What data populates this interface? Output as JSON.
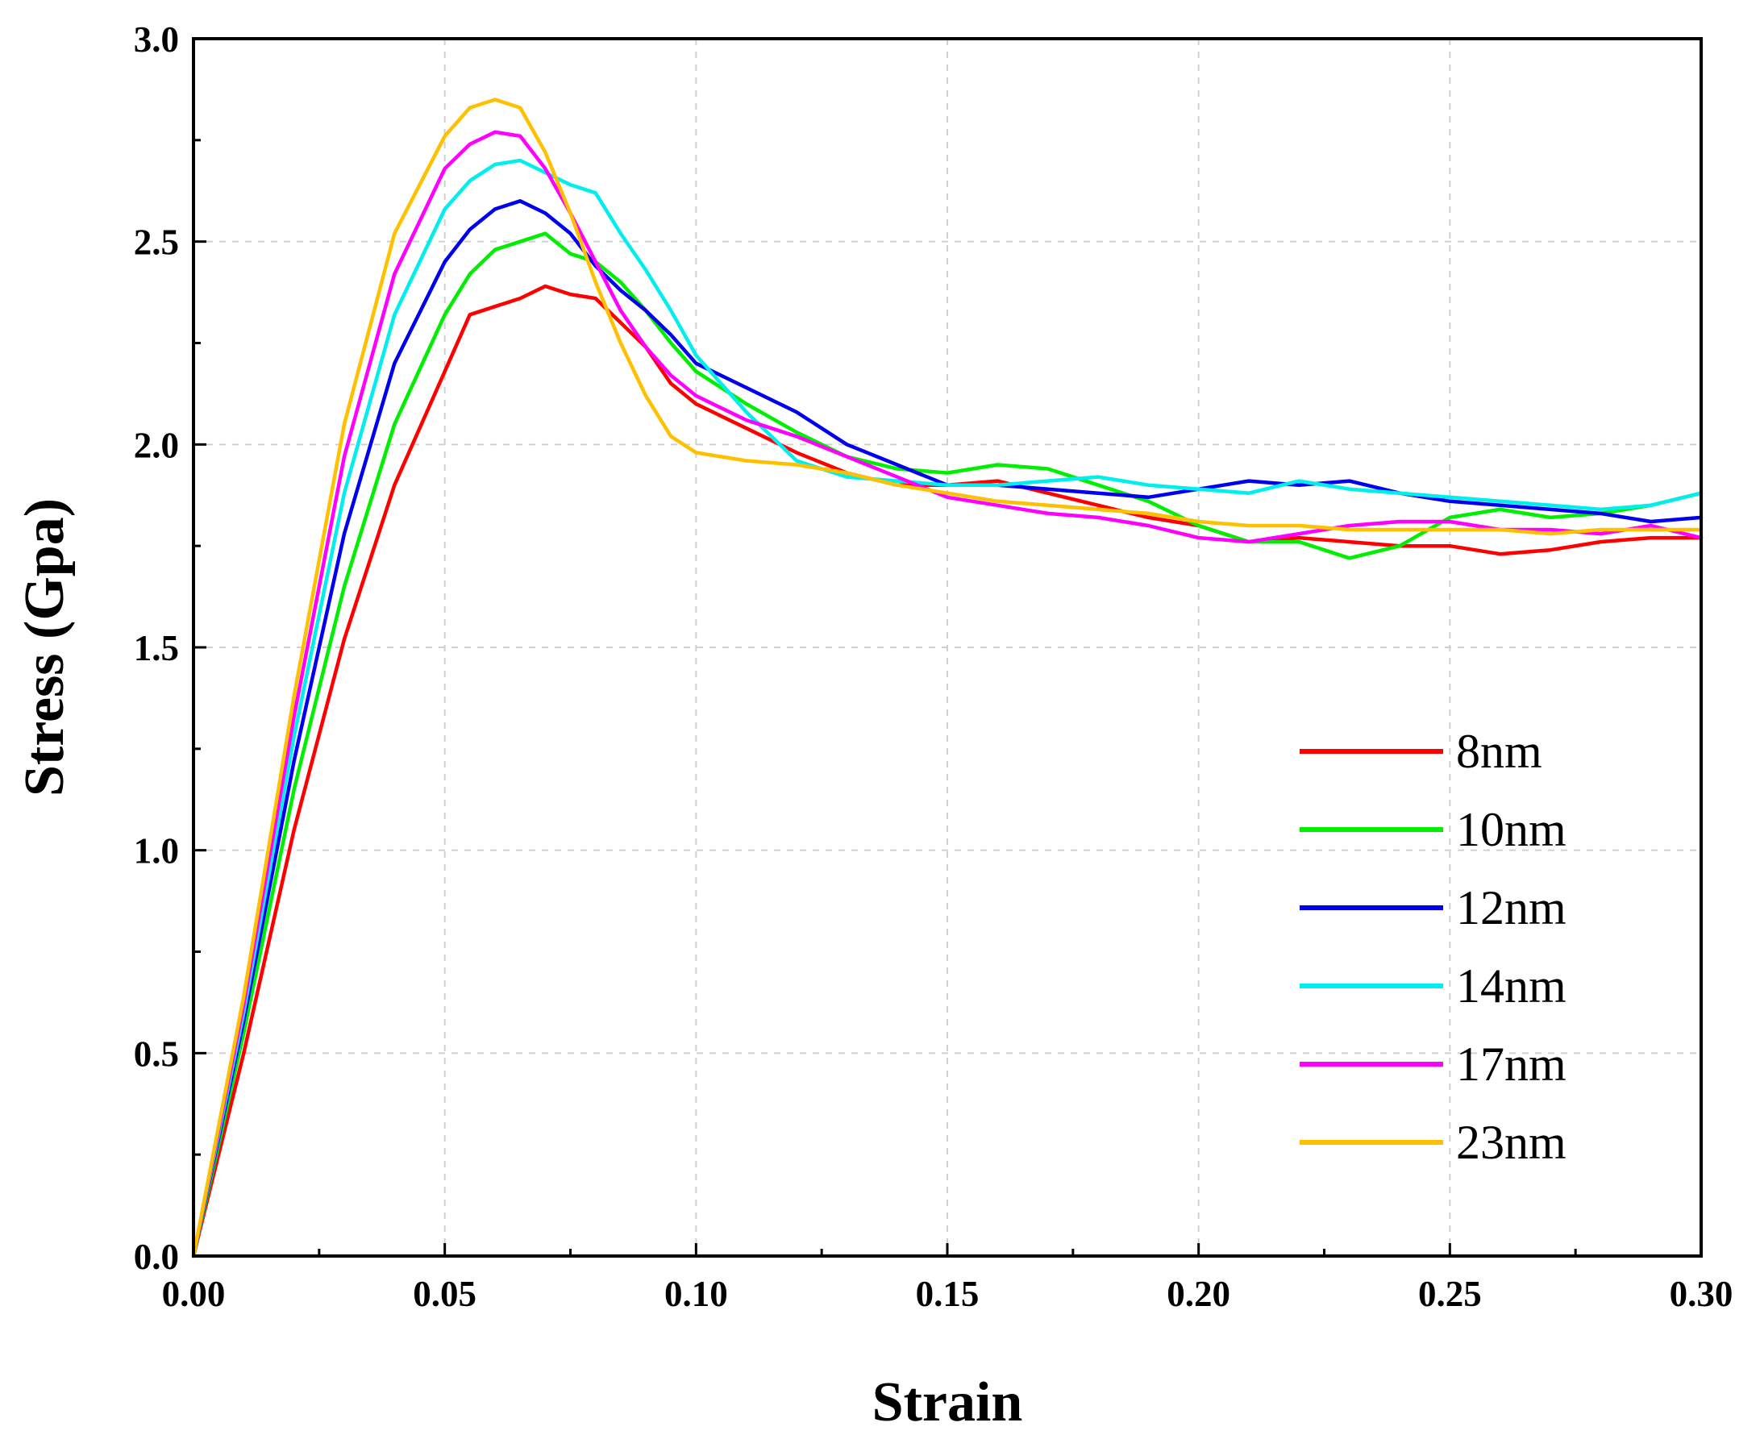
{
  "chart_data": {
    "type": "line",
    "title": "",
    "xlabel": "Strain",
    "ylabel": "Stress (Gpa)",
    "xlim": [
      0.0,
      0.3
    ],
    "ylim": [
      0.0,
      3.0
    ],
    "xticks": [
      "0.00",
      "0.05",
      "0.10",
      "0.15",
      "0.20",
      "0.25",
      "0.30"
    ],
    "yticks": [
      "0.0",
      "0.5",
      "1.0",
      "1.5",
      "2.0",
      "2.5",
      "3.0"
    ],
    "grid": true,
    "legend_position": "bottom-right",
    "series": [
      {
        "name": "8nm",
        "color": "#ff0000",
        "x": [
          0,
          0.01,
          0.02,
          0.03,
          0.04,
          0.05,
          0.055,
          0.06,
          0.065,
          0.07,
          0.075,
          0.08,
          0.085,
          0.09,
          0.095,
          0.1,
          0.11,
          0.12,
          0.13,
          0.14,
          0.15,
          0.16,
          0.17,
          0.18,
          0.19,
          0.2,
          0.21,
          0.22,
          0.23,
          0.24,
          0.25,
          0.26,
          0.27,
          0.28,
          0.29,
          0.3
        ],
        "values": [
          0,
          0.5,
          1.05,
          1.52,
          1.9,
          2.18,
          2.32,
          2.34,
          2.36,
          2.39,
          2.37,
          2.36,
          2.3,
          2.24,
          2.15,
          2.1,
          2.04,
          1.98,
          1.93,
          1.9,
          1.9,
          1.91,
          1.88,
          1.85,
          1.82,
          1.8,
          1.76,
          1.77,
          1.76,
          1.75,
          1.75,
          1.73,
          1.74,
          1.76,
          1.77,
          1.77
        ]
      },
      {
        "name": "10nm",
        "color": "#00ee00",
        "x": [
          0,
          0.01,
          0.02,
          0.03,
          0.04,
          0.05,
          0.055,
          0.06,
          0.065,
          0.07,
          0.075,
          0.08,
          0.085,
          0.09,
          0.095,
          0.1,
          0.11,
          0.12,
          0.13,
          0.14,
          0.15,
          0.16,
          0.17,
          0.18,
          0.19,
          0.2,
          0.21,
          0.22,
          0.23,
          0.24,
          0.25,
          0.26,
          0.27,
          0.28,
          0.29,
          0.3
        ],
        "values": [
          0,
          0.55,
          1.15,
          1.65,
          2.05,
          2.32,
          2.42,
          2.48,
          2.5,
          2.52,
          2.47,
          2.45,
          2.4,
          2.33,
          2.25,
          2.18,
          2.1,
          2.03,
          1.97,
          1.94,
          1.93,
          1.95,
          1.94,
          1.9,
          1.86,
          1.8,
          1.76,
          1.76,
          1.72,
          1.75,
          1.82,
          1.84,
          1.82,
          1.83,
          1.85,
          1.88
        ]
      },
      {
        "name": "12nm",
        "color": "#0000ee",
        "x": [
          0,
          0.01,
          0.02,
          0.03,
          0.04,
          0.05,
          0.055,
          0.06,
          0.065,
          0.07,
          0.075,
          0.08,
          0.085,
          0.09,
          0.095,
          0.1,
          0.11,
          0.12,
          0.13,
          0.14,
          0.15,
          0.16,
          0.17,
          0.18,
          0.19,
          0.2,
          0.21,
          0.22,
          0.23,
          0.24,
          0.25,
          0.26,
          0.27,
          0.28,
          0.29,
          0.3
        ],
        "values": [
          0,
          0.58,
          1.22,
          1.78,
          2.2,
          2.45,
          2.53,
          2.58,
          2.6,
          2.57,
          2.52,
          2.44,
          2.38,
          2.33,
          2.27,
          2.2,
          2.14,
          2.08,
          2.0,
          1.95,
          1.9,
          1.9,
          1.89,
          1.88,
          1.87,
          1.89,
          1.91,
          1.9,
          1.91,
          1.88,
          1.86,
          1.85,
          1.84,
          1.83,
          1.81,
          1.82
        ]
      },
      {
        "name": "14nm",
        "color": "#00eeee",
        "x": [
          0,
          0.01,
          0.02,
          0.03,
          0.04,
          0.05,
          0.055,
          0.06,
          0.065,
          0.07,
          0.075,
          0.08,
          0.085,
          0.09,
          0.095,
          0.1,
          0.11,
          0.12,
          0.13,
          0.14,
          0.15,
          0.16,
          0.17,
          0.18,
          0.19,
          0.2,
          0.21,
          0.22,
          0.23,
          0.24,
          0.25,
          0.26,
          0.27,
          0.28,
          0.29,
          0.3
        ],
        "values": [
          0,
          0.6,
          1.28,
          1.88,
          2.32,
          2.58,
          2.65,
          2.69,
          2.7,
          2.67,
          2.64,
          2.62,
          2.52,
          2.43,
          2.33,
          2.22,
          2.08,
          1.96,
          1.92,
          1.91,
          1.9,
          1.9,
          1.91,
          1.92,
          1.9,
          1.89,
          1.88,
          1.91,
          1.89,
          1.88,
          1.87,
          1.86,
          1.85,
          1.84,
          1.85,
          1.88
        ]
      },
      {
        "name": "17nm",
        "color": "#ff00ff",
        "x": [
          0,
          0.01,
          0.02,
          0.03,
          0.04,
          0.05,
          0.055,
          0.06,
          0.065,
          0.07,
          0.075,
          0.08,
          0.085,
          0.09,
          0.095,
          0.1,
          0.11,
          0.12,
          0.13,
          0.14,
          0.15,
          0.16,
          0.17,
          0.18,
          0.19,
          0.2,
          0.21,
          0.22,
          0.23,
          0.24,
          0.25,
          0.26,
          0.27,
          0.28,
          0.29,
          0.3
        ],
        "values": [
          0,
          0.62,
          1.33,
          1.97,
          2.42,
          2.68,
          2.74,
          2.77,
          2.76,
          2.68,
          2.57,
          2.45,
          2.33,
          2.24,
          2.17,
          2.12,
          2.06,
          2.02,
          1.97,
          1.92,
          1.87,
          1.85,
          1.83,
          1.82,
          1.8,
          1.77,
          1.76,
          1.78,
          1.8,
          1.81,
          1.81,
          1.79,
          1.79,
          1.78,
          1.8,
          1.77
        ]
      },
      {
        "name": "23nm",
        "color": "#ffc000",
        "x": [
          0,
          0.01,
          0.02,
          0.03,
          0.04,
          0.05,
          0.055,
          0.06,
          0.065,
          0.07,
          0.075,
          0.08,
          0.085,
          0.09,
          0.095,
          0.1,
          0.11,
          0.12,
          0.13,
          0.14,
          0.15,
          0.16,
          0.17,
          0.18,
          0.19,
          0.2,
          0.21,
          0.22,
          0.23,
          0.24,
          0.25,
          0.26,
          0.27,
          0.28,
          0.29,
          0.3
        ],
        "values": [
          0,
          0.64,
          1.38,
          2.05,
          2.52,
          2.76,
          2.83,
          2.85,
          2.83,
          2.72,
          2.57,
          2.4,
          2.25,
          2.12,
          2.02,
          1.98,
          1.96,
          1.95,
          1.93,
          1.9,
          1.88,
          1.86,
          1.85,
          1.84,
          1.83,
          1.81,
          1.8,
          1.8,
          1.79,
          1.79,
          1.79,
          1.79,
          1.78,
          1.79,
          1.79,
          1.79
        ]
      }
    ]
  }
}
